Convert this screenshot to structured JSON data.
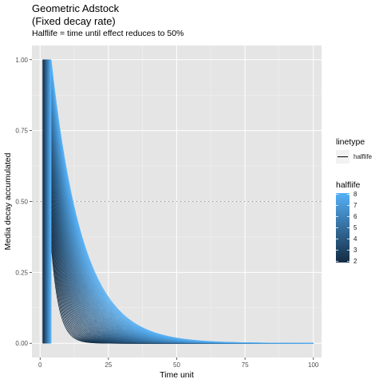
{
  "chart_data": {
    "type": "line",
    "title_lines": [
      "Geometric Adstock",
      "(Fixed decay rate)"
    ],
    "subtitle": "Halflife = time until effect reduces to 50%",
    "xlabel": "Time unit",
    "ylabel": "Media decay accumulated",
    "xlim": [
      -3,
      103
    ],
    "ylim": [
      -0.05,
      1.05
    ],
    "x_ticks": [
      0,
      25,
      50,
      75,
      100
    ],
    "y_ticks": [
      0.0,
      0.25,
      0.5,
      0.75,
      1.0
    ],
    "y_tick_labels": [
      "0.00",
      "0.25",
      "0.50",
      "0.75",
      "1.00"
    ],
    "reference_line": {
      "y": 0.5,
      "style": "dashed",
      "color": "#bdbdbd"
    },
    "curve": {
      "form": "geometric decay, value = 0.5^((x - start) / halflife)",
      "halflife_range": [
        2,
        8
      ],
      "halflife_step": 0.1,
      "start_range": [
        1,
        4
      ],
      "x_end": 100
    },
    "grid": true,
    "panel_background": "#e5e5e5",
    "color_low": "#132b43",
    "color_high": "#56b1f7",
    "legend": {
      "position": "right",
      "linetype": {
        "title": "linetype",
        "entries": [
          "halflife"
        ]
      },
      "halflife": {
        "title": "halflife",
        "ticks": [
          2,
          3,
          4,
          5,
          6,
          7,
          8
        ]
      }
    }
  }
}
